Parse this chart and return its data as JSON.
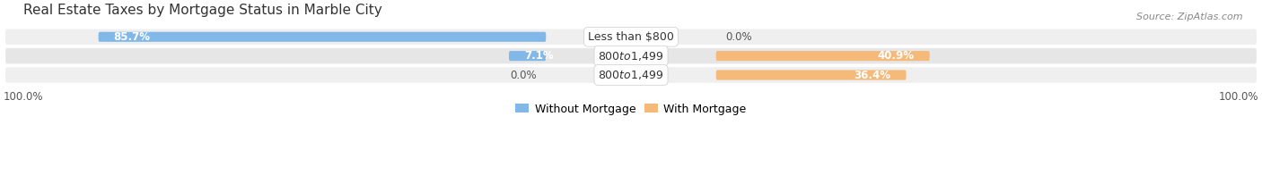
{
  "title": "Real Estate Taxes by Mortgage Status in Marble City",
  "source": "Source: ZipAtlas.com",
  "rows": [
    {
      "label": "Less than $800",
      "without_mortgage": 85.7,
      "with_mortgage": 0.0
    },
    {
      "label": "$800 to $1,499",
      "without_mortgage": 7.1,
      "with_mortgage": 40.9
    },
    {
      "label": "$800 to $1,499",
      "without_mortgage": 0.0,
      "with_mortgage": 36.4
    }
  ],
  "color_without": "#82B8E8",
  "color_with": "#F5B97A",
  "bar_height": 0.52,
  "background_row_odd": "#EFEFEF",
  "background_row_even": "#E6E6E6",
  "background_fig": "#FFFFFF",
  "legend_label_without": "Without Mortgage",
  "legend_label_with": "With Mortgage",
  "title_fontsize": 11,
  "label_fontsize": 9,
  "value_fontsize": 8.5,
  "tick_fontsize": 8.5,
  "source_fontsize": 8
}
